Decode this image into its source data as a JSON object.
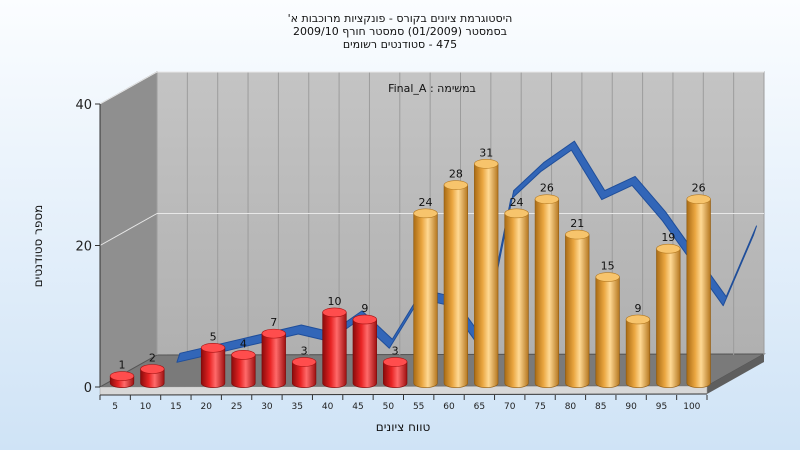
{
  "chart_data": {
    "type": "bar",
    "title_lines": [
      "היסטוגרמת ציונים בקורס - פונקציות מרוכבות א'",
      "בסמסטר  (01/2009)  סמסטר חורף 2009/10",
      "475 - סטודנטים רשומים"
    ],
    "annotation": "Final_A : במשימה",
    "xlabel": "טווח ציונים",
    "ylabel": "מספר סטודנטים",
    "ylim": [
      0,
      40
    ],
    "yticks": [
      0,
      20,
      40
    ],
    "grid": true,
    "categories": [
      "5",
      "10",
      "15",
      "20",
      "25",
      "30",
      "35",
      "40",
      "45",
      "50",
      "55",
      "60",
      "65",
      "70",
      "75",
      "80",
      "85",
      "90",
      "95",
      "100"
    ],
    "bars": [
      {
        "x": "5",
        "value": 1,
        "group": "fail"
      },
      {
        "x": "10",
        "value": 2,
        "group": "fail"
      },
      {
        "x": "20",
        "value": 5,
        "group": "fail"
      },
      {
        "x": "25",
        "value": 4,
        "group": "fail"
      },
      {
        "x": "30",
        "value": 7,
        "group": "fail"
      },
      {
        "x": "35",
        "value": 3,
        "group": "fail"
      },
      {
        "x": "40",
        "value": 10,
        "group": "fail"
      },
      {
        "x": "45",
        "value": 9,
        "group": "fail"
      },
      {
        "x": "50",
        "value": 3,
        "group": "fail"
      },
      {
        "x": "55",
        "value": 24,
        "group": "pass"
      },
      {
        "x": "60",
        "value": 28,
        "group": "pass"
      },
      {
        "x": "65",
        "value": 31,
        "group": "pass"
      },
      {
        "x": "70",
        "value": 24,
        "group": "pass"
      },
      {
        "x": "75",
        "value": 26,
        "group": "pass"
      },
      {
        "x": "80",
        "value": 21,
        "group": "pass"
      },
      {
        "x": "85",
        "value": 15,
        "group": "pass"
      },
      {
        "x": "90",
        "value": 9,
        "group": "pass"
      },
      {
        "x": "95",
        "value": 19,
        "group": "pass"
      },
      {
        "x": "100",
        "value": 26,
        "group": "pass"
      }
    ],
    "line_series": {
      "type": "3d-ribbon",
      "x": [
        "10",
        "15",
        "20",
        "25",
        "30",
        "35",
        "40",
        "45",
        "50",
        "55",
        "60",
        "65",
        "70",
        "75",
        "80",
        "85",
        "90",
        "95",
        "100",
        "105"
      ],
      "values": [
        1,
        2,
        3,
        4,
        5,
        4,
        7,
        3,
        10,
        9,
        3,
        24,
        28,
        31,
        24,
        26,
        21,
        15,
        9,
        19
      ]
    },
    "colors": {
      "fail_bar": "#d81a1a",
      "pass_bar": "#e8a33c",
      "ribbon": "#3266b8",
      "plot_back": "#b8b8b8",
      "plot_side": "#8f8f8f",
      "floor": "#7a7a7a"
    }
  }
}
